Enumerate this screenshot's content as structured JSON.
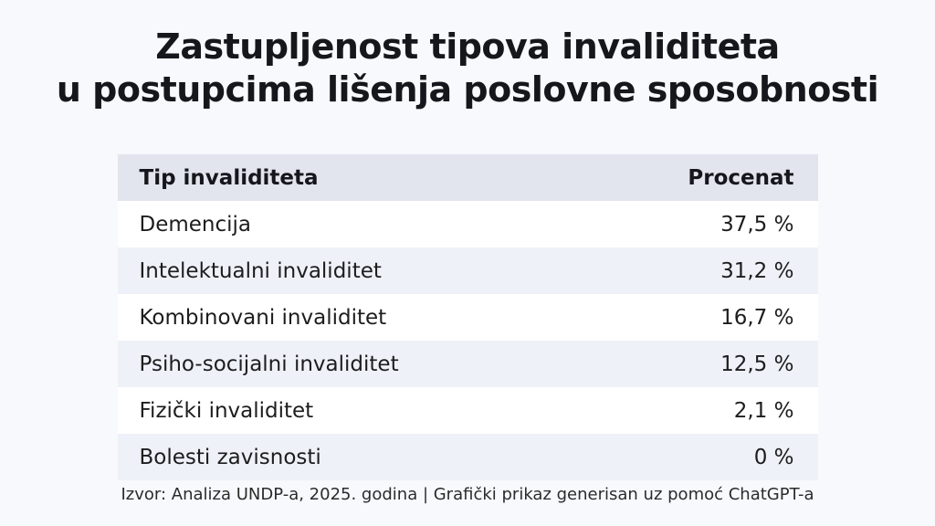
{
  "title": {
    "line1": "Zastupljenost tipova invaliditeta",
    "line2": "u postupcima lišenja poslovne sposobnosti"
  },
  "table": {
    "headers": {
      "type": "Tip invaliditeta",
      "percent": "Procenat"
    },
    "rows": [
      {
        "type": "Demencija",
        "percent": "37,5 %"
      },
      {
        "type": "Intelektualni invaliditet",
        "percent": "31,2 %"
      },
      {
        "type": "Kombinovani invaliditet",
        "percent": "16,7 %"
      },
      {
        "type": "Psiho-socijalni invaliditet",
        "percent": "12,5 %"
      },
      {
        "type": "Fizički invaliditet",
        "percent": "2,1 %"
      },
      {
        "type": "Bolesti zavisnosti",
        "percent": "0 %"
      }
    ]
  },
  "footer": {
    "source": "Izvor: Analiza UNDP-a, 2025. godina | Grafički prikaz generisan uz pomoć ChatGPT-a"
  },
  "colors": {
    "page_background": "#f8f9fc",
    "header_background": "#e2e5ee",
    "alt_row_background": "#eef1f7",
    "white_row_background": "#ffffff",
    "title_text": "#15171c",
    "cell_text": "#1d1d1f",
    "footer_text": "#2b2b2b"
  },
  "chart_data": {
    "type": "table",
    "title": "Zastupljenost tipova invaliditeta u postupcima lišenja poslovne sposobnosti",
    "columns": [
      "Tip invaliditeta",
      "Procenat"
    ],
    "categories": [
      "Demencija",
      "Intelektualni invaliditet",
      "Kombinovani invaliditet",
      "Psiho-socijalni invaliditet",
      "Fizički invaliditet",
      "Bolesti zavisnosti"
    ],
    "values": [
      37.5,
      31.2,
      16.7,
      12.5,
      2.1,
      0
    ],
    "value_labels": [
      "37,5 %",
      "31,2 %",
      "16,7 %",
      "12,5 %",
      "2,1 %",
      "0 %"
    ],
    "unit": "%",
    "source": "Izvor: Analiza UNDP-a, 2025. godina | Grafički prikaz generisan uz pomoć ChatGPT-a",
    "layout": {
      "zebra_striping": true,
      "value_alignment": "right",
      "grid": false
    }
  }
}
